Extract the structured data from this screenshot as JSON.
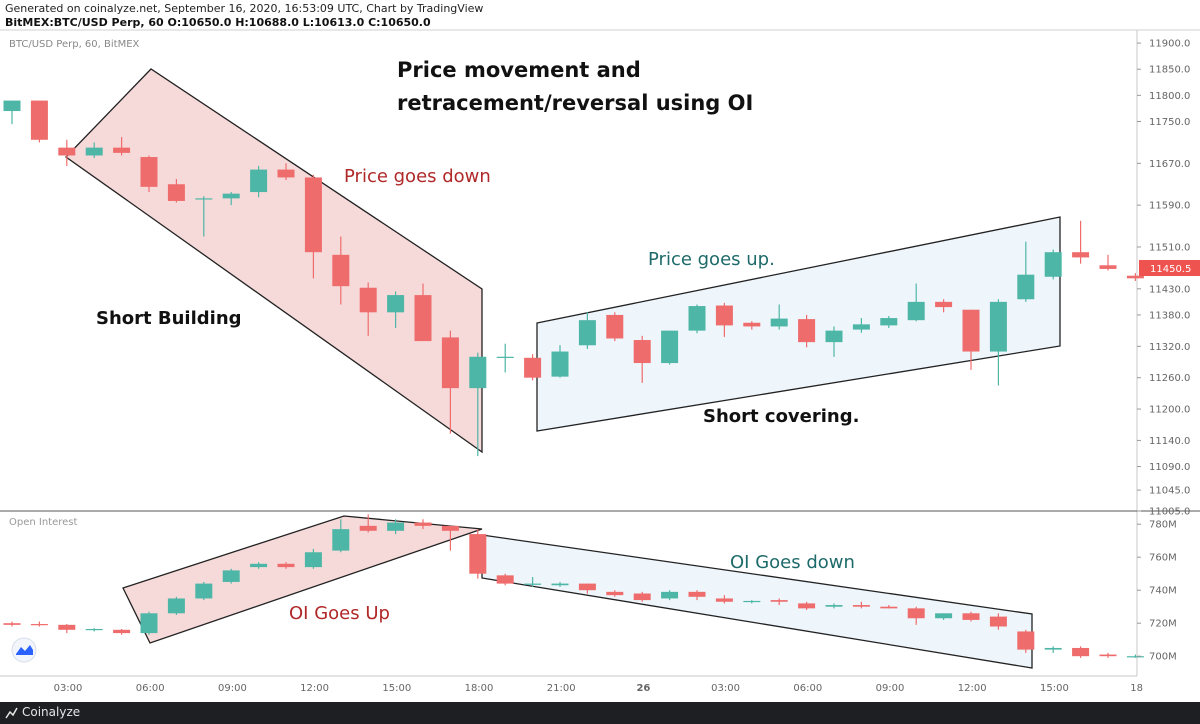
{
  "header": {
    "line1": "Generated on coinalyze.net, September 16, 2020, 16:53:09 UTC, Chart by TradingView",
    "line2": "BitMEX:BTC/USD Perp, 60 O:10650.0 H:10688.0 L:10613.0 C:10650.0"
  },
  "footer": {
    "brand": "Coinalyze"
  },
  "chart_data": [
    {
      "type": "candlestick",
      "title": "BTC/USD Perp, 60, BitMEX",
      "annotation_title": [
        "Price movement and",
        "retracement/reversal using OI"
      ],
      "ylim": [
        11005,
        11925
      ],
      "y_ticks": [
        11900,
        11850,
        11800,
        11750,
        11670,
        11590,
        11510,
        11430,
        11380,
        11320,
        11260,
        11200,
        11140,
        11090,
        11045,
        11005
      ],
      "current_price_label": "11450.5",
      "x_ticks": [
        "03:00",
        "06:00",
        "09:00",
        "12:00",
        "15:00",
        "18:00",
        "21:00",
        "26",
        "03:00",
        "06:00",
        "09:00",
        "12:00",
        "15:00",
        "18"
      ],
      "candles": [
        {
          "o": 11770,
          "h": 11790,
          "l": 11745,
          "c": 11790
        },
        {
          "o": 11790,
          "h": 11790,
          "l": 11710,
          "c": 11715
        },
        {
          "o": 11700,
          "h": 11715,
          "l": 11665,
          "c": 11685
        },
        {
          "o": 11685,
          "h": 11710,
          "l": 11680,
          "c": 11700
        },
        {
          "o": 11700,
          "h": 11720,
          "l": 11685,
          "c": 11690
        },
        {
          "o": 11682,
          "h": 11685,
          "l": 11615,
          "c": 11625
        },
        {
          "o": 11630,
          "h": 11640,
          "l": 11595,
          "c": 11598
        },
        {
          "o": 11602,
          "h": 11607,
          "l": 11530,
          "c": 11603
        },
        {
          "o": 11603,
          "h": 11615,
          "l": 11590,
          "c": 11612
        },
        {
          "o": 11615,
          "h": 11665,
          "l": 11605,
          "c": 11658
        },
        {
          "o": 11658,
          "h": 11670,
          "l": 11638,
          "c": 11643
        },
        {
          "o": 11643,
          "h": 11648,
          "l": 11450,
          "c": 11500
        },
        {
          "o": 11495,
          "h": 11530,
          "l": 11400,
          "c": 11435
        },
        {
          "o": 11432,
          "h": 11442,
          "l": 11340,
          "c": 11385
        },
        {
          "o": 11385,
          "h": 11425,
          "l": 11355,
          "c": 11418
        },
        {
          "o": 11418,
          "h": 11440,
          "l": 11330,
          "c": 11330
        },
        {
          "o": 11337,
          "h": 11350,
          "l": 11153,
          "c": 11240
        },
        {
          "o": 11240,
          "h": 11308,
          "l": 11110,
          "c": 11300
        },
        {
          "o": 11300,
          "h": 11325,
          "l": 11270,
          "c": 11300
        },
        {
          "o": 11298,
          "h": 11305,
          "l": 11255,
          "c": 11260
        },
        {
          "o": 11262,
          "h": 11322,
          "l": 11260,
          "c": 11310
        },
        {
          "o": 11322,
          "h": 11385,
          "l": 11315,
          "c": 11370
        },
        {
          "o": 11380,
          "h": 11385,
          "l": 11330,
          "c": 11335
        },
        {
          "o": 11332,
          "h": 11340,
          "l": 11250,
          "c": 11288
        },
        {
          "o": 11288,
          "h": 11350,
          "l": 11285,
          "c": 11350
        },
        {
          "o": 11350,
          "h": 11400,
          "l": 11345,
          "c": 11397
        },
        {
          "o": 11398,
          "h": 11403,
          "l": 11338,
          "c": 11360
        },
        {
          "o": 11365,
          "h": 11368,
          "l": 11352,
          "c": 11358
        },
        {
          "o": 11358,
          "h": 11400,
          "l": 11352,
          "c": 11373
        },
        {
          "o": 11372,
          "h": 11380,
          "l": 11318,
          "c": 11328
        },
        {
          "o": 11328,
          "h": 11358,
          "l": 11300,
          "c": 11350
        },
        {
          "o": 11352,
          "h": 11374,
          "l": 11346,
          "c": 11362
        },
        {
          "o": 11360,
          "h": 11378,
          "l": 11355,
          "c": 11374
        },
        {
          "o": 11370,
          "h": 11440,
          "l": 11368,
          "c": 11405
        },
        {
          "o": 11405,
          "h": 11410,
          "l": 11385,
          "c": 11395
        },
        {
          "o": 11390,
          "h": 11390,
          "l": 11275,
          "c": 11310
        },
        {
          "o": 11310,
          "h": 11410,
          "l": 11245,
          "c": 11405
        },
        {
          "o": 11410,
          "h": 11520,
          "l": 11405,
          "c": 11457
        },
        {
          "o": 11453,
          "h": 11505,
          "l": 11448,
          "c": 11500
        },
        {
          "o": 11500,
          "h": 11560,
          "l": 11478,
          "c": 11490
        },
        {
          "o": 11475,
          "h": 11495,
          "l": 11465,
          "c": 11468
        },
        {
          "o": 11455,
          "h": 11460,
          "l": 11445,
          "c": 11450
        }
      ]
    },
    {
      "type": "candlestick",
      "title": "Open Interest",
      "ylim": [
        688,
        788
      ],
      "y_ticks": [
        "780M",
        "760M",
        "740M",
        "720M",
        "700M"
      ],
      "candles": [
        {
          "o": 720,
          "h": 721,
          "l": 718,
          "c": 719
        },
        {
          "o": 719.5,
          "h": 721,
          "l": 718,
          "c": 719
        },
        {
          "o": 719,
          "h": 719.5,
          "l": 714,
          "c": 716
        },
        {
          "o": 716,
          "h": 717,
          "l": 715,
          "c": 716.5
        },
        {
          "o": 716,
          "h": 716.5,
          "l": 713,
          "c": 714
        },
        {
          "o": 714,
          "h": 727,
          "l": 713,
          "c": 726
        },
        {
          "o": 726,
          "h": 736,
          "l": 725,
          "c": 735
        },
        {
          "o": 735,
          "h": 745,
          "l": 734,
          "c": 744
        },
        {
          "o": 745,
          "h": 753,
          "l": 744,
          "c": 752
        },
        {
          "o": 754,
          "h": 757,
          "l": 753,
          "c": 756
        },
        {
          "o": 756,
          "h": 757,
          "l": 753,
          "c": 754
        },
        {
          "o": 754,
          "h": 765,
          "l": 753,
          "c": 763
        },
        {
          "o": 764,
          "h": 783,
          "l": 763,
          "c": 777
        },
        {
          "o": 779,
          "h": 786,
          "l": 775,
          "c": 776
        },
        {
          "o": 776,
          "h": 783,
          "l": 774,
          "c": 781
        },
        {
          "o": 781,
          "h": 783,
          "l": 777,
          "c": 779
        },
        {
          "o": 779,
          "h": 779,
          "l": 764,
          "c": 776
        },
        {
          "o": 774,
          "h": 777,
          "l": 747,
          "c": 750
        },
        {
          "o": 749,
          "h": 750,
          "l": 743,
          "c": 744
        },
        {
          "o": 744,
          "h": 748,
          "l": 742,
          "c": 744
        },
        {
          "o": 743,
          "h": 745,
          "l": 742,
          "c": 744
        },
        {
          "o": 744,
          "h": 744,
          "l": 738,
          "c": 740
        },
        {
          "o": 739,
          "h": 740,
          "l": 736,
          "c": 737
        },
        {
          "o": 738,
          "h": 739,
          "l": 733,
          "c": 734
        },
        {
          "o": 735,
          "h": 740,
          "l": 734,
          "c": 739
        },
        {
          "o": 739,
          "h": 740,
          "l": 734,
          "c": 736
        },
        {
          "o": 735,
          "h": 737,
          "l": 732,
          "c": 733
        },
        {
          "o": 733,
          "h": 734,
          "l": 732,
          "c": 733.5
        },
        {
          "o": 734,
          "h": 735,
          "l": 731,
          "c": 733
        },
        {
          "o": 732,
          "h": 733,
          "l": 728,
          "c": 729
        },
        {
          "o": 730,
          "h": 732,
          "l": 729,
          "c": 731
        },
        {
          "o": 731,
          "h": 733,
          "l": 729,
          "c": 730
        },
        {
          "o": 730,
          "h": 731,
          "l": 729,
          "c": 729
        },
        {
          "o": 729,
          "h": 730,
          "l": 719,
          "c": 723
        },
        {
          "o": 723,
          "h": 726,
          "l": 722,
          "c": 726
        },
        {
          "o": 726,
          "h": 727,
          "l": 721,
          "c": 722
        },
        {
          "o": 724,
          "h": 726,
          "l": 716,
          "c": 718
        },
        {
          "o": 715,
          "h": 716,
          "l": 702,
          "c": 704
        },
        {
          "o": 704,
          "h": 706,
          "l": 702,
          "c": 705
        },
        {
          "o": 705,
          "h": 706,
          "l": 699,
          "c": 700
        },
        {
          "o": 701,
          "h": 702,
          "l": 699,
          "c": 700
        },
        {
          "o": 700,
          "h": 701,
          "l": 699,
          "c": 700
        }
      ]
    }
  ],
  "annotations": {
    "price_down": "Price goes down",
    "short_building": "Short Building",
    "price_up": "Price goes up.",
    "short_covering": "Short covering.",
    "oi_up": "OI Goes Up",
    "oi_down": "OI Goes down"
  },
  "colors": {
    "bull": "#4db6a6",
    "bear": "#ef6c6c",
    "red_zone_fill": "#f6dada",
    "blue_zone_fill": "#eef5fb",
    "annotation_red": "#b02828",
    "annotation_teal": "#1e6a6a",
    "price_badge": "#ef5350"
  }
}
